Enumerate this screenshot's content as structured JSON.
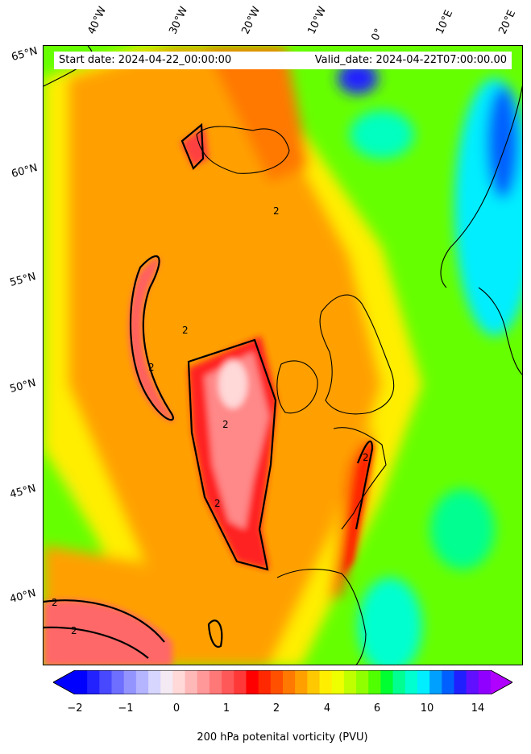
{
  "header": {
    "start_date": "Start date: 2024-04-22_00:00:00",
    "valid_date": "Valid_date: 2024-04-22T07:00:00.00"
  },
  "axes": {
    "longitude_labels": [
      "40°W",
      "30°W",
      "20°W",
      "10°W",
      "0°",
      "10°E",
      "20°E"
    ],
    "latitude_labels": [
      "65°N",
      "60°N",
      "55°N",
      "50°N",
      "45°N",
      "40°N"
    ]
  },
  "map": {
    "contour_label": "2",
    "contour_value": 2
  },
  "colorbar": {
    "label": "200 hPa potenital vorticity (PVU)",
    "tick_labels": [
      "−2",
      "−1",
      "0",
      "1",
      "2",
      "4",
      "6",
      "10",
      "14"
    ],
    "colors": [
      "#0000ff",
      "#2222ff",
      "#4848ff",
      "#6e6eff",
      "#9494ff",
      "#b4b4ff",
      "#d6d6ff",
      "#f4eaf4",
      "#ffd8d8",
      "#ffb8b8",
      "#ff9898",
      "#ff7878",
      "#ff5858",
      "#ff3838",
      "#ff0000",
      "#ff2800",
      "#ff5000",
      "#ff7800",
      "#ffa000",
      "#ffc800",
      "#ffee00",
      "#eeff00",
      "#c0ff00",
      "#90ff00",
      "#50ff00",
      "#00ff30",
      "#00ff90",
      "#00ffd0",
      "#00eeff",
      "#00a0ff",
      "#0060ff",
      "#2020ff",
      "#6010ff",
      "#9000ff"
    ],
    "extend_low_color": "#0000ff",
    "extend_high_color": "#b000ff"
  }
}
